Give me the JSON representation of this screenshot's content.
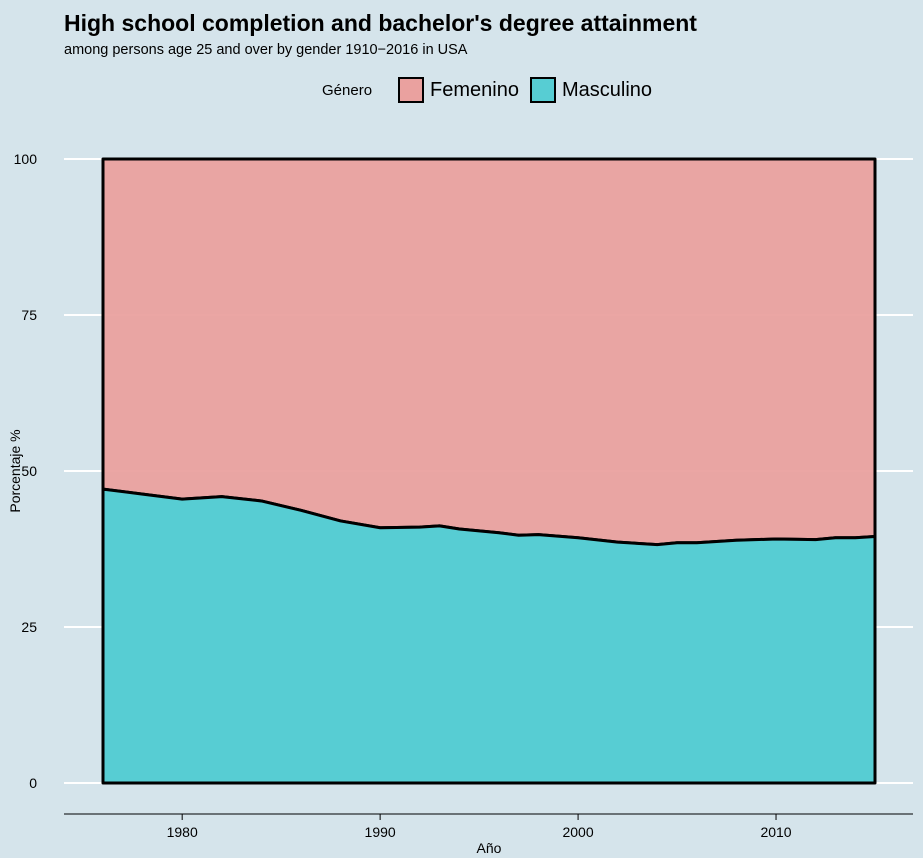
{
  "chart_data": {
    "type": "area",
    "stacked": true,
    "percent": true,
    "title": "High school completion and bachelor's degree attainment",
    "subtitle": "among persons age 25 and over by gender 1910−2016 in USA",
    "xlabel": "Año",
    "ylabel": "Porcentaje %",
    "xlim": [
      1976,
      2015
    ],
    "ylim": [
      0,
      100
    ],
    "xticks": [
      1980,
      1990,
      2000,
      2010
    ],
    "yticks": [
      0,
      25,
      50,
      75,
      100
    ],
    "legend": {
      "title": "Género",
      "position": "top",
      "entries": [
        "Femenino",
        "Masculino"
      ]
    },
    "grid": "horizontal",
    "x": [
      1976,
      1978,
      1980,
      1982,
      1984,
      1986,
      1988,
      1990,
      1992,
      1993,
      1994,
      1996,
      1997,
      1998,
      2000,
      2002,
      2004,
      2005,
      2006,
      2008,
      2010,
      2012,
      2013,
      2014,
      2015
    ],
    "series": [
      {
        "name": "Masculino",
        "color": "#57cdd3",
        "values": [
          47.1,
          46.3,
          45.5,
          45.9,
          45.2,
          43.7,
          42.0,
          40.9,
          41.0,
          41.2,
          40.7,
          40.1,
          39.7,
          39.8,
          39.3,
          38.6,
          38.2,
          38.5,
          38.5,
          38.9,
          39.1,
          39.0,
          39.3,
          39.3,
          39.5
        ]
      },
      {
        "name": "Femenino",
        "color": "#eaa19f",
        "values": [
          52.9,
          53.7,
          54.5,
          54.1,
          54.8,
          56.3,
          58.0,
          59.1,
          59.0,
          58.8,
          59.3,
          59.9,
          60.3,
          60.2,
          60.7,
          61.4,
          61.8,
          61.5,
          61.5,
          61.1,
          60.9,
          61.0,
          60.7,
          60.7,
          60.5
        ]
      }
    ],
    "colors": {
      "background": "#d5e4eb",
      "grid": "#ffffff",
      "outline": "#000000"
    }
  }
}
